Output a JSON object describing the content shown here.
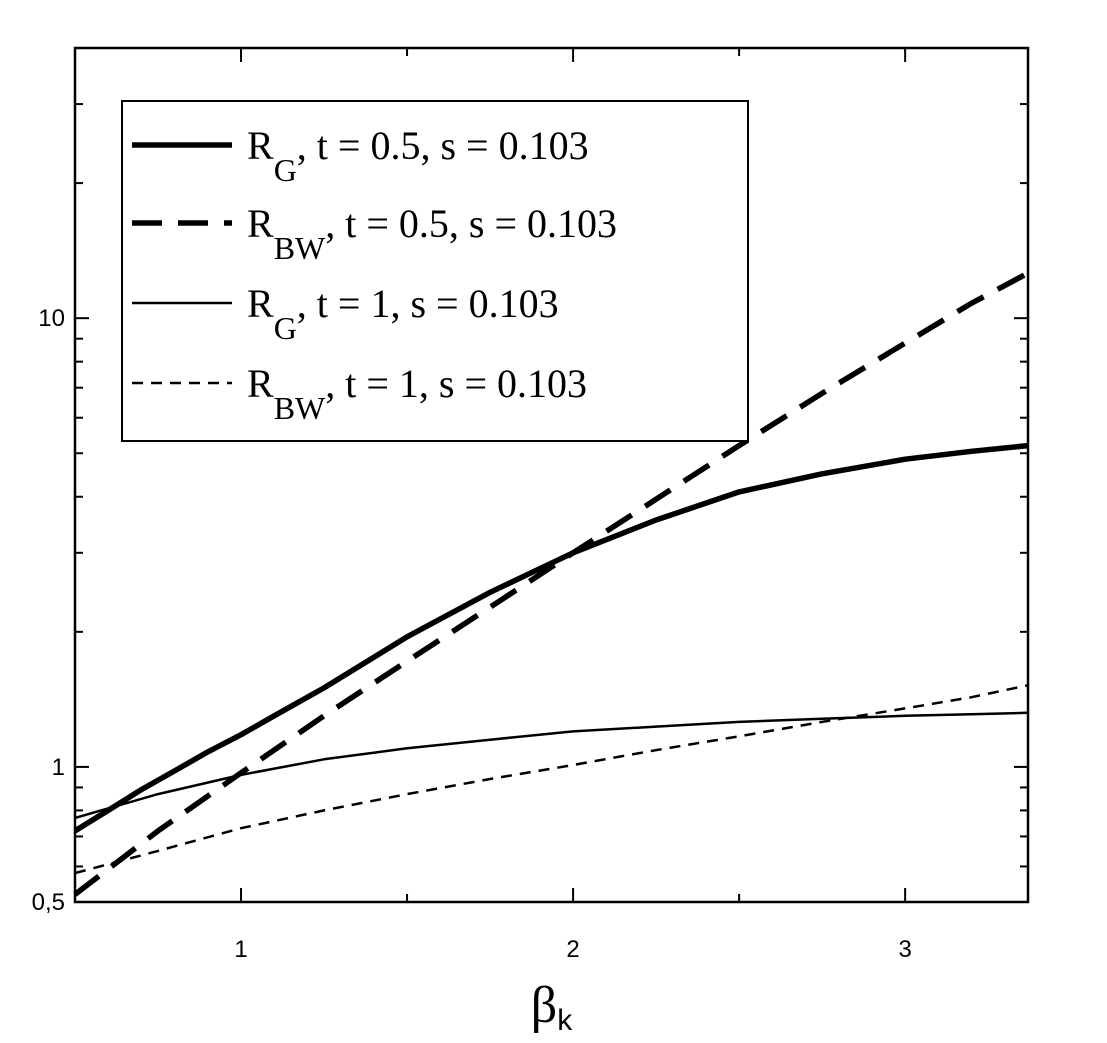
{
  "chart_data": {
    "type": "line",
    "title": "",
    "xlabel": "β",
    "xlabel_sub": "k",
    "ylabel": "",
    "x_scale": "linear",
    "y_scale": "log",
    "xlim": [
      0.5,
      3.37
    ],
    "ylim": [
      0.5,
      40
    ],
    "x_ticks": [
      1,
      2,
      3
    ],
    "x_tick_labels": [
      "1",
      "2",
      "3"
    ],
    "x_minor_ticks": [
      1.5,
      2.5
    ],
    "y_ticks": [
      0.5,
      1,
      10
    ],
    "y_tick_labels": [
      "0,5",
      "1",
      "10"
    ],
    "grid": false,
    "legend_placement": "top-left",
    "series": [
      {
        "name": "R_G, t = 0.5, s = 0.103",
        "legend": {
          "main": "R",
          "sub": "G",
          "rest": ", t = 0.5, s = 0.103"
        },
        "style": "solid-thick",
        "x": [
          0.5,
          0.6,
          0.7,
          0.8,
          0.9,
          1.0,
          1.1,
          1.25,
          1.5,
          1.75,
          2.0,
          2.25,
          2.5,
          2.75,
          3.0,
          3.2,
          3.37
        ],
        "y": [
          0.72,
          0.8,
          0.89,
          0.98,
          1.08,
          1.18,
          1.3,
          1.5,
          1.95,
          2.45,
          3.0,
          3.55,
          4.1,
          4.5,
          4.85,
          5.05,
          5.2
        ]
      },
      {
        "name": "R_BW, t = 0.5, s = 0.103",
        "legend": {
          "main": "R",
          "sub": "BW",
          "rest": ", t = 0.5, s = 0.103"
        },
        "style": "dashed-thick",
        "x": [
          0.5,
          0.75,
          1.0,
          1.25,
          1.5,
          1.75,
          2.0,
          2.25,
          2.5,
          2.75,
          3.0,
          3.2,
          3.37
        ],
        "y": [
          0.52,
          0.72,
          0.97,
          1.3,
          1.72,
          2.27,
          3.0,
          3.95,
          5.2,
          6.8,
          8.8,
          10.8,
          12.6
        ]
      },
      {
        "name": "R_G, t = 1, s = 0.103",
        "legend": {
          "main": "R",
          "sub": "G",
          "rest": ", t = 1, s = 0.103"
        },
        "style": "solid-thin",
        "x": [
          0.5,
          0.75,
          1.0,
          1.25,
          1.5,
          1.75,
          2.0,
          2.25,
          2.5,
          2.75,
          3.0,
          3.2,
          3.37
        ],
        "y": [
          0.77,
          0.87,
          0.96,
          1.04,
          1.1,
          1.15,
          1.2,
          1.23,
          1.26,
          1.28,
          1.3,
          1.31,
          1.32
        ]
      },
      {
        "name": "R_BW, t = 1, s = 0.103",
        "legend": {
          "main": "R",
          "sub": "BW",
          "rest": ", t = 1, s = 0.103"
        },
        "style": "dashed-thin",
        "x": [
          0.5,
          0.75,
          1.0,
          1.25,
          1.5,
          1.75,
          2.0,
          2.25,
          2.5,
          2.75,
          3.0,
          3.2,
          3.37
        ],
        "y": [
          0.58,
          0.65,
          0.73,
          0.8,
          0.87,
          0.94,
          1.01,
          1.09,
          1.17,
          1.26,
          1.35,
          1.43,
          1.52
        ]
      }
    ]
  }
}
